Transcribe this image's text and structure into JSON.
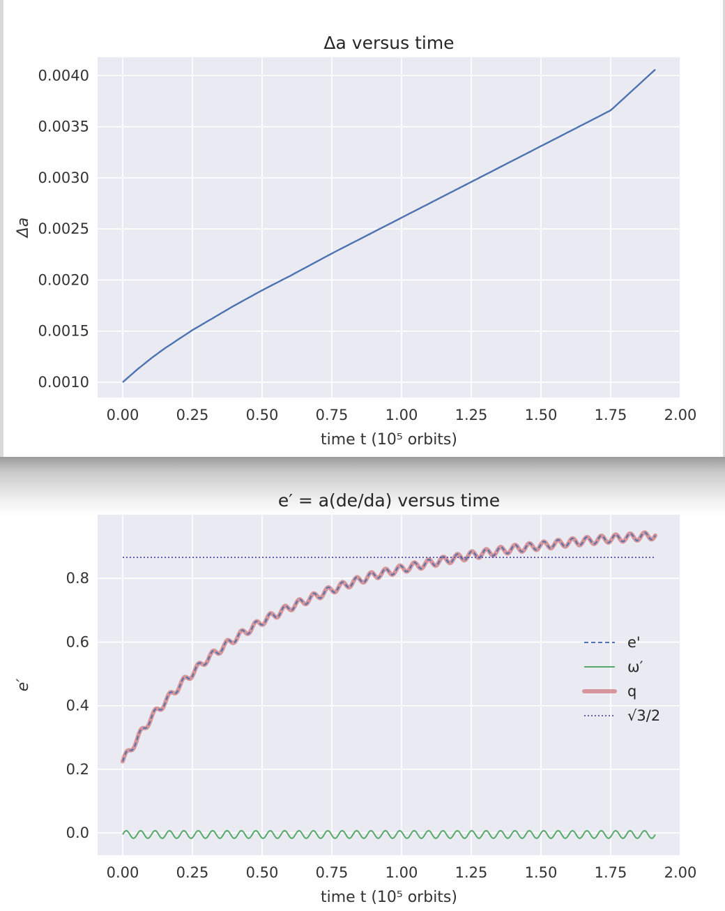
{
  "colors": {
    "axes_bg": "#eaeaf2",
    "grid": "#ffffff",
    "blue": "#4c72b0",
    "green": "#55a868",
    "q_pink": "#c44e52",
    "purple": "#4c4ca8",
    "text": "#333333"
  },
  "chart_data": [
    {
      "type": "line",
      "title": "Δa versus time",
      "xlabel": "time t    (10⁵ orbits)",
      "ylabel": "Δa",
      "xlim": [
        -0.09,
        2.0
      ],
      "ylim": [
        0.00085,
        0.00418
      ],
      "xticks": [
        "0.00",
        "0.25",
        "0.50",
        "0.75",
        "1.00",
        "1.25",
        "1.50",
        "1.75",
        "2.00"
      ],
      "yticks": [
        "0.0010",
        "0.0015",
        "0.0020",
        "0.0025",
        "0.0030",
        "0.0035",
        "0.0040"
      ],
      "grid": true,
      "series": [
        {
          "x": [
            0.0,
            0.05,
            0.1,
            0.15,
            0.2,
            0.25,
            0.3,
            0.4,
            0.5,
            0.6,
            0.75,
            0.9,
            1.0,
            1.25,
            1.5,
            1.75,
            1.91
          ],
          "values": [
            0.001,
            0.00112,
            0.00123,
            0.00133,
            0.00142,
            0.00151,
            0.00159,
            0.00175,
            0.0019,
            0.00204,
            0.00226,
            0.00247,
            0.00261,
            0.00296,
            0.00331,
            0.00366,
            0.00406
          ]
        }
      ]
    },
    {
      "type": "line",
      "title": "e′ = a(de/da) versus time",
      "xlabel": "time t    (10⁵ orbits)",
      "ylabel": "e′",
      "xlim": [
        -0.09,
        2.0
      ],
      "ylim": [
        -0.07,
        1.0
      ],
      "xticks": [
        "0.00",
        "0.25",
        "0.50",
        "0.75",
        "1.00",
        "1.25",
        "1.50",
        "1.75",
        "2.00"
      ],
      "yticks": [
        "0.0",
        "0.2",
        "0.4",
        "0.6",
        "0.8"
      ],
      "grid": true,
      "legend_position": "right",
      "series": [
        {
          "name": "e'",
          "x": [
            0.0,
            0.1,
            0.2,
            0.3,
            0.4,
            0.5,
            0.6,
            0.75,
            0.9,
            1.0,
            1.1,
            1.25,
            1.4,
            1.5,
            1.6,
            1.75,
            1.91
          ],
          "values": [
            0.225,
            0.36,
            0.46,
            0.545,
            0.61,
            0.665,
            0.71,
            0.765,
            0.81,
            0.83,
            0.848,
            0.873,
            0.893,
            0.903,
            0.913,
            0.925,
            0.935
          ],
          "wiggle": 0.012
        },
        {
          "name": "ω′",
          "x": [
            0.0,
            1.91
          ],
          "values": [
            -0.005,
            -0.005
          ],
          "wiggle": 0.012
        },
        {
          "name": "q",
          "x": [
            0.0,
            0.1,
            0.2,
            0.3,
            0.4,
            0.5,
            0.6,
            0.75,
            0.9,
            1.0,
            1.1,
            1.25,
            1.4,
            1.5,
            1.6,
            1.75,
            1.91
          ],
          "values": [
            0.225,
            0.36,
            0.46,
            0.545,
            0.61,
            0.665,
            0.71,
            0.765,
            0.81,
            0.83,
            0.848,
            0.873,
            0.893,
            0.903,
            0.913,
            0.925,
            0.935
          ],
          "wiggle": 0.012
        },
        {
          "name": "√3/2",
          "x": [
            0.0,
            1.91
          ],
          "values": [
            0.866,
            0.866
          ]
        }
      ],
      "legend": [
        {
          "label": "e'"
        },
        {
          "label": "ω′"
        },
        {
          "label": "q"
        },
        {
          "label": "√3/2"
        }
      ]
    }
  ]
}
